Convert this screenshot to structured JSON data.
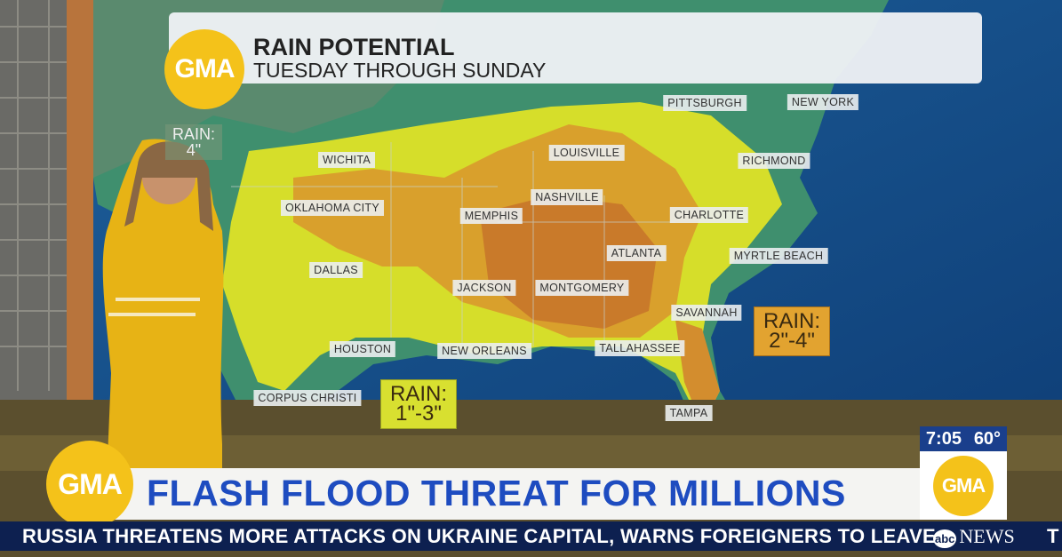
{
  "graphic": {
    "logo": "GMA",
    "title": "RAIN POTENTIAL",
    "subtitle": "TUESDAY THROUGH SUNDAY"
  },
  "map": {
    "cities": [
      "PITTSBURGH",
      "NEW YORK",
      "LOUISVILLE",
      "RICHMOND",
      "WICHITA",
      "NASHVILLE",
      "OKLAHOMA CITY",
      "MEMPHIS",
      "CHARLOTTE",
      "ATLANTA",
      "MYRTLE BEACH",
      "DALLAS",
      "JACKSON",
      "MONTGOMERY",
      "SAVANNAH",
      "HOUSTON",
      "NEW ORLEANS",
      "TALLAHASSEE",
      "CORPUS CHRISTI",
      "TAMPA"
    ],
    "callouts": [
      {
        "label": "RAIN:",
        "value": "2\"-4\""
      },
      {
        "label": "RAIN:",
        "value": "1\"-3\""
      },
      {
        "label": "RAIN:",
        "value": "4\""
      }
    ]
  },
  "lower_third": {
    "logo": "GMA",
    "headline": "FLASH FLOOD THREAT FOR MILLIONS",
    "time": "7:05",
    "temperature": "60°",
    "clock_logo": "GMA",
    "ticker": "RUSSIA THREATENS MORE ATTACKS ON UKRAINE CAPITAL, WARNS FOREIGNERS TO LEAVE",
    "network_prefix": "abc",
    "network": "NEWS",
    "ticker_next": "T"
  }
}
